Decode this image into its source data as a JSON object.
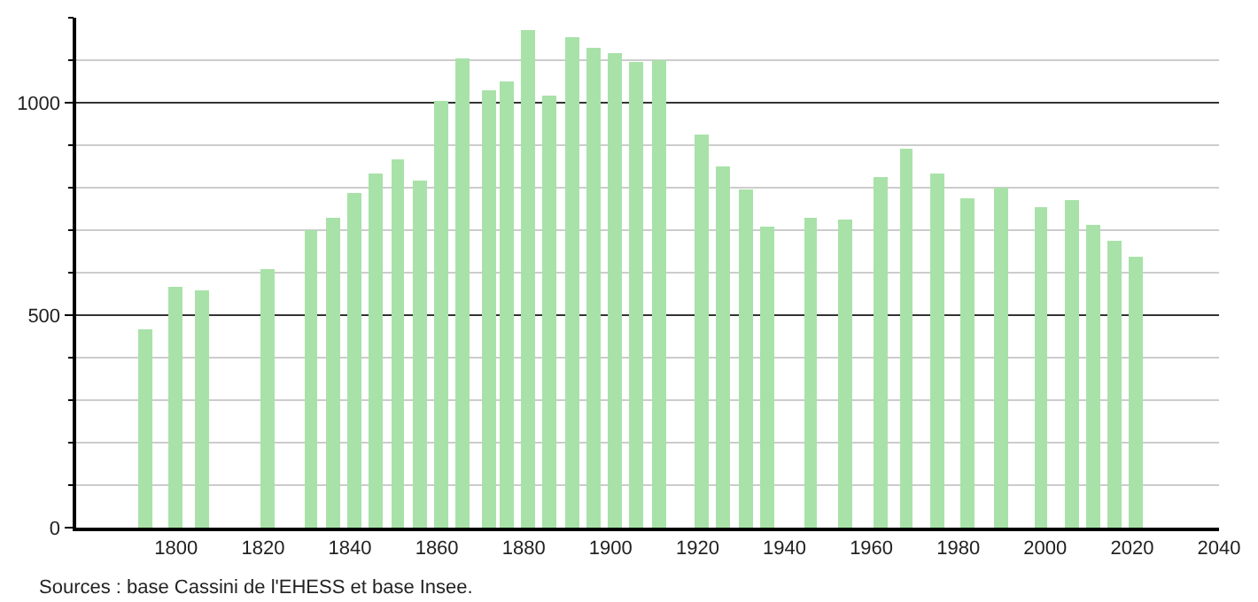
{
  "chart_data": {
    "type": "bar",
    "x": [
      1793,
      1800,
      1806,
      1821,
      1831,
      1836,
      1841,
      1846,
      1851,
      1856,
      1861,
      1866,
      1872,
      1876,
      1881,
      1886,
      1891,
      1896,
      1901,
      1906,
      1911,
      1921,
      1926,
      1931,
      1936,
      1946,
      1954,
      1962,
      1968,
      1975,
      1982,
      1990,
      1999,
      2006,
      2011,
      2016,
      2021
    ],
    "values": [
      467,
      568,
      558,
      610,
      700,
      728,
      786,
      834,
      866,
      818,
      1005,
      1106,
      1028,
      1048,
      1171,
      1016,
      1156,
      1131,
      1118,
      1095,
      1102,
      923,
      848,
      794,
      707,
      728,
      723,
      827,
      890,
      832,
      773,
      800,
      753,
      770,
      711,
      674,
      636
    ],
    "color": "#a8e2a8",
    "xlim": [
      1777,
      2040
    ],
    "xticks": [
      1800,
      1820,
      1840,
      1860,
      1880,
      1900,
      1920,
      1940,
      1960,
      1980,
      2000,
      2020,
      2040
    ],
    "ylim": [
      0,
      1200
    ],
    "yticks": [
      0,
      {
        "value": 100,
        "label": null
      },
      {
        "value": 200,
        "label": null
      },
      {
        "value": 300,
        "label": null
      },
      {
        "value": 400,
        "label": null
      },
      500,
      {
        "value": 600,
        "label": null
      },
      {
        "value": 700,
        "label": null
      },
      {
        "value": 800,
        "label": null
      },
      {
        "value": 900,
        "label": null
      },
      1000,
      {
        "value": 1100,
        "label": null
      },
      {
        "value": 1200,
        "label": null
      }
    ],
    "grid": "y",
    "annotations": [
      "Sources : base Cassini de l'EHESS et base Insee."
    ]
  }
}
